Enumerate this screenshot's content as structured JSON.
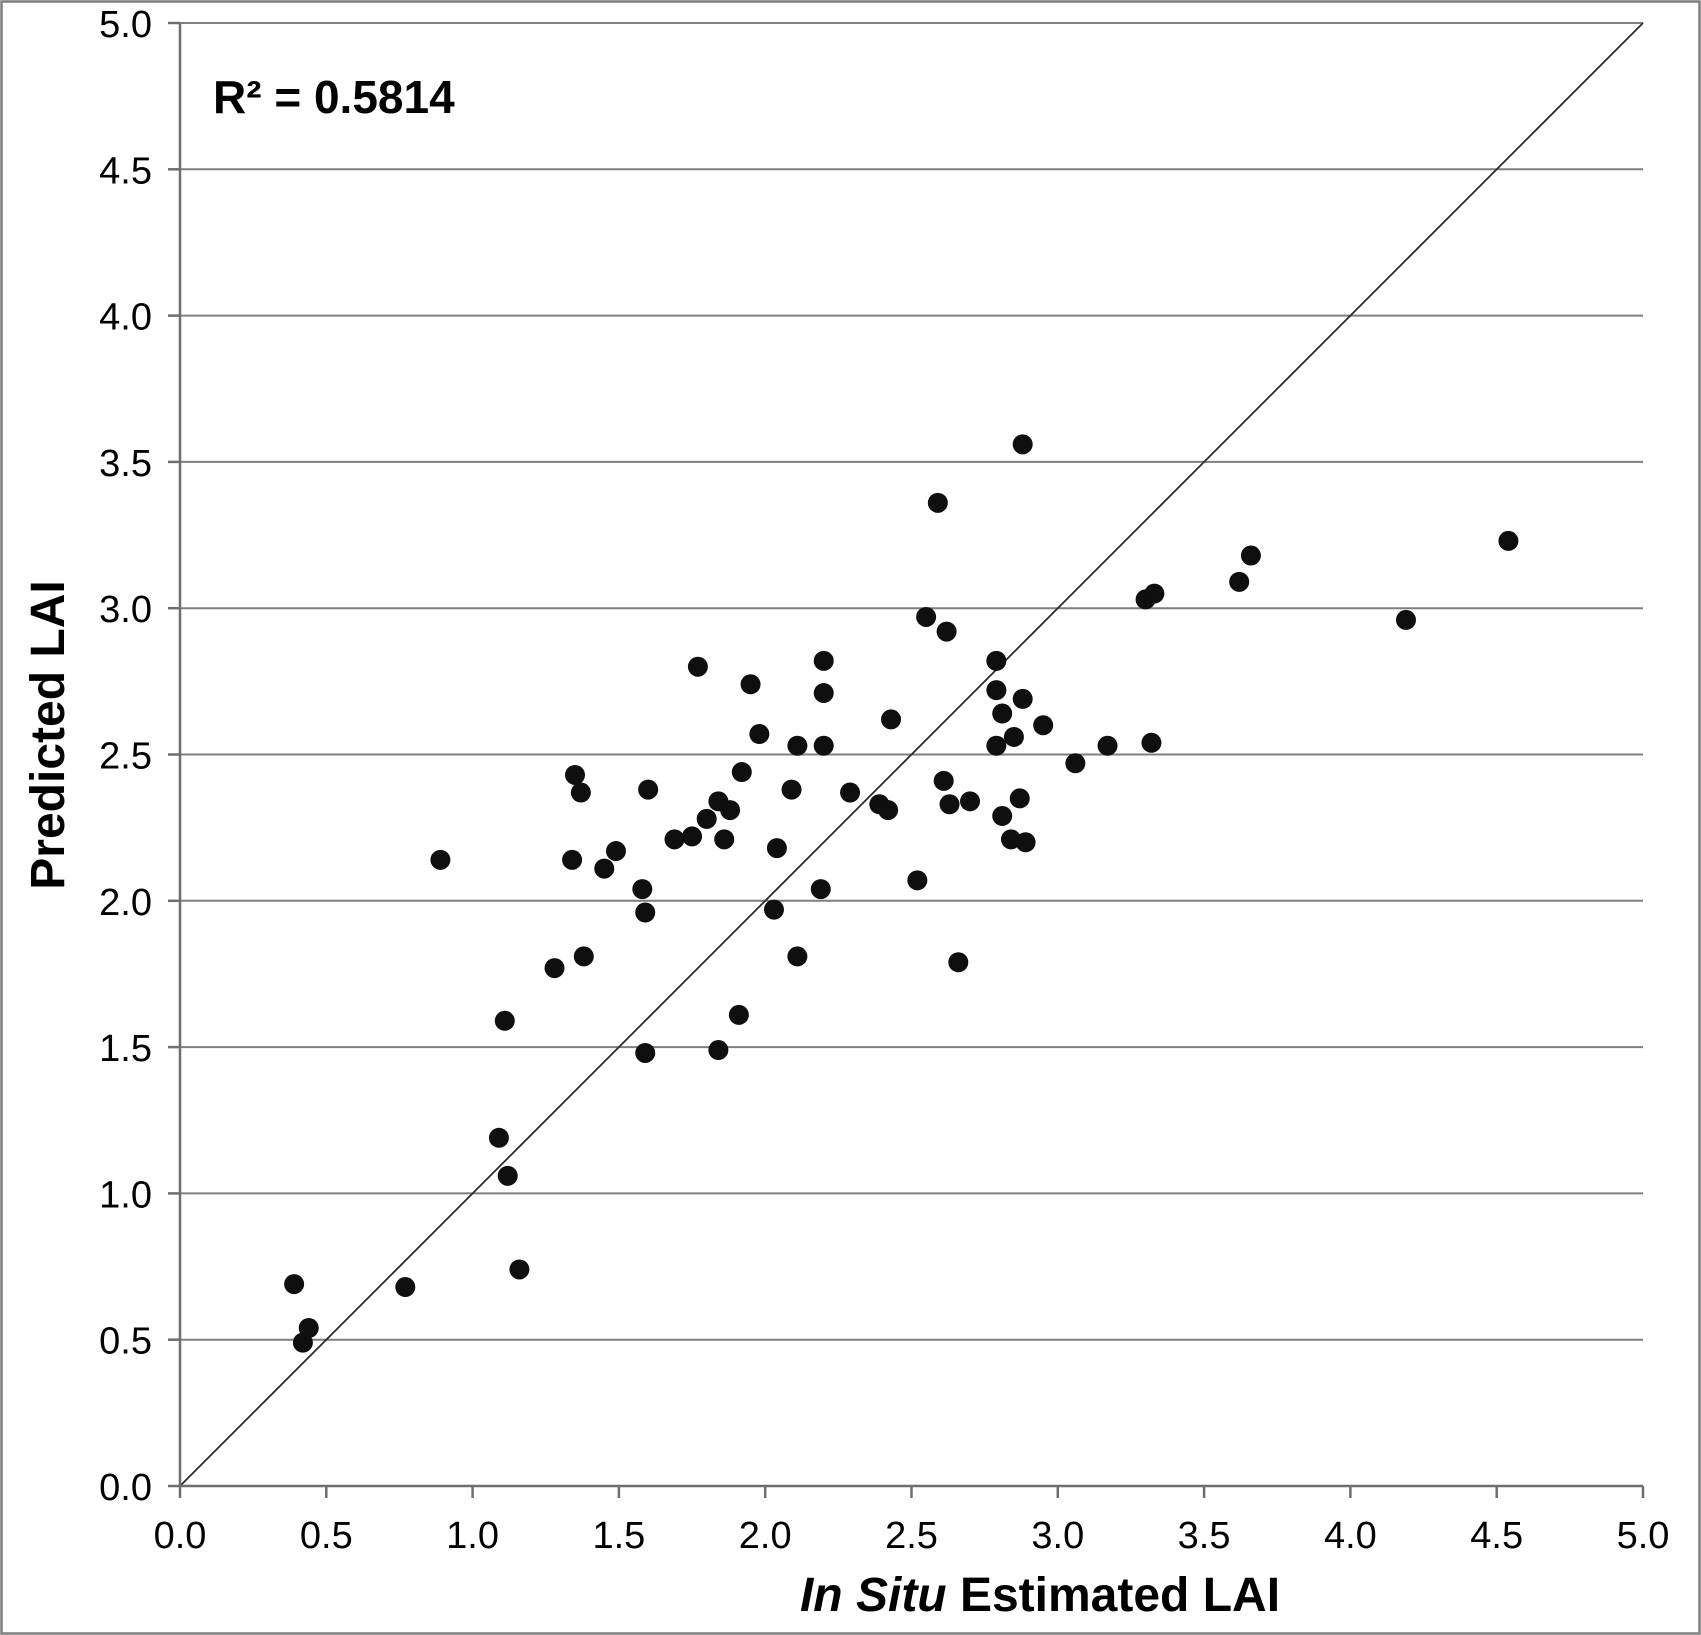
{
  "figure": {
    "background": "#ffffff",
    "border_color": "#7f7f7f"
  },
  "chart_data": {
    "type": "scatter",
    "title": "",
    "annotation": "R² = 0.5814",
    "xlabel": "In Situ Estimated LAI",
    "xlabel_italic_prefix": "In Situ",
    "ylabel": "Predicted LAI",
    "xlim": [
      0.0,
      5.0
    ],
    "ylim": [
      0.0,
      5.0
    ],
    "xtick_labels": [
      "0.0",
      "0.5",
      "1.0",
      "1.5",
      "2.0",
      "2.5",
      "3.0",
      "3.5",
      "4.0",
      "4.5",
      "5.0"
    ],
    "ytick_labels": [
      "0.0",
      "0.5",
      "1.0",
      "1.5",
      "2.0",
      "2.5",
      "3.0",
      "3.5",
      "4.0",
      "4.5",
      "5.0"
    ],
    "grid": "horizontal-only",
    "legend": "none",
    "identity_line": {
      "from": [
        0.0,
        0.0
      ],
      "to": [
        5.0,
        5.0
      ]
    },
    "marker": {
      "shape": "circle",
      "color": "#0f0f0f"
    },
    "colors": {
      "gridline": "#7f7f7f",
      "axis": "#6e6e6e",
      "identity_line": "#2b2b2b",
      "text": "#000000",
      "background": "#ffffff",
      "border": "#7f7f7f"
    },
    "points": [
      [
        0.39,
        0.69
      ],
      [
        0.42,
        0.49
      ],
      [
        0.44,
        0.54
      ],
      [
        0.77,
        0.68
      ],
      [
        1.16,
        0.74
      ],
      [
        1.12,
        1.06
      ],
      [
        1.09,
        1.19
      ],
      [
        1.11,
        1.59
      ],
      [
        1.59,
        1.48
      ],
      [
        1.84,
        1.49
      ],
      [
        1.91,
        1.61
      ],
      [
        1.28,
        1.77
      ],
      [
        1.38,
        1.81
      ],
      [
        2.11,
        1.81
      ],
      [
        2.66,
        1.79
      ],
      [
        0.89,
        2.14
      ],
      [
        1.34,
        2.14
      ],
      [
        1.45,
        2.11
      ],
      [
        1.49,
        2.17
      ],
      [
        1.58,
        2.04
      ],
      [
        1.59,
        1.96
      ],
      [
        2.03,
        1.97
      ],
      [
        2.19,
        2.04
      ],
      [
        2.52,
        2.07
      ],
      [
        1.35,
        2.43
      ],
      [
        1.37,
        2.37
      ],
      [
        1.6,
        2.38
      ],
      [
        1.69,
        2.21
      ],
      [
        1.75,
        2.22
      ],
      [
        1.8,
        2.28
      ],
      [
        1.84,
        2.34
      ],
      [
        1.88,
        2.31
      ],
      [
        1.86,
        2.21
      ],
      [
        1.92,
        2.44
      ],
      [
        2.04,
        2.18
      ],
      [
        2.09,
        2.38
      ],
      [
        2.11,
        2.53
      ],
      [
        2.2,
        2.53
      ],
      [
        2.29,
        2.37
      ],
      [
        2.39,
        2.33
      ],
      [
        2.42,
        2.31
      ],
      [
        1.77,
        2.8
      ],
      [
        1.95,
        2.74
      ],
      [
        1.98,
        2.57
      ],
      [
        2.2,
        2.82
      ],
      [
        2.2,
        2.71
      ],
      [
        2.43,
        2.62
      ],
      [
        2.55,
        2.97
      ],
      [
        2.62,
        2.92
      ],
      [
        2.59,
        3.36
      ],
      [
        2.88,
        3.56
      ],
      [
        2.79,
        2.82
      ],
      [
        2.79,
        2.72
      ],
      [
        2.88,
        2.69
      ],
      [
        2.81,
        2.64
      ],
      [
        2.95,
        2.6
      ],
      [
        2.85,
        2.56
      ],
      [
        2.79,
        2.53
      ],
      [
        2.61,
        2.41
      ],
      [
        2.63,
        2.33
      ],
      [
        2.7,
        2.34
      ],
      [
        2.87,
        2.35
      ],
      [
        2.81,
        2.29
      ],
      [
        2.84,
        2.21
      ],
      [
        2.89,
        2.2
      ],
      [
        3.06,
        2.47
      ],
      [
        3.17,
        2.53
      ],
      [
        3.32,
        2.54
      ],
      [
        3.3,
        3.03
      ],
      [
        3.33,
        3.05
      ],
      [
        3.62,
        3.09
      ],
      [
        3.66,
        3.18
      ],
      [
        4.19,
        2.96
      ],
      [
        4.54,
        3.23
      ]
    ]
  }
}
